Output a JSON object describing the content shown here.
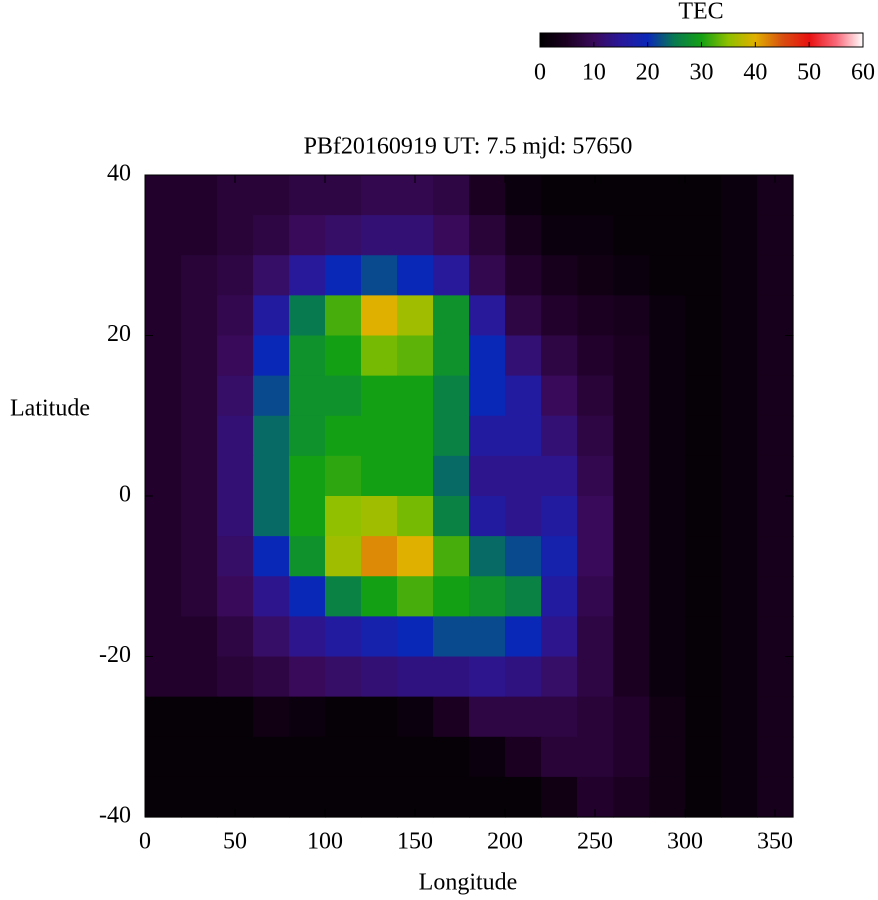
{
  "chart_data": {
    "type": "heatmap",
    "title": "PBf20160919  UT: 7.5  mjd: 57650",
    "x_label": "Longitude",
    "y_label": "Latitude",
    "xlim": [
      0,
      360
    ],
    "ylim": [
      -40,
      40
    ],
    "xticks": [
      0,
      50,
      100,
      150,
      200,
      250,
      300,
      350
    ],
    "yticks": [
      -40,
      -20,
      0,
      20,
      40
    ],
    "x": [
      10,
      30,
      50,
      70,
      90,
      110,
      130,
      150,
      170,
      190,
      210,
      230,
      250,
      270,
      290,
      310,
      330,
      350
    ],
    "y": [
      37.5,
      32.5,
      27.5,
      22.5,
      17.5,
      12.5,
      7.5,
      2.5,
      -2.5,
      -7.5,
      -12.5,
      -17.5,
      -22.5,
      -27.5,
      -32.5,
      -37.5
    ],
    "values": [
      [
        6,
        6,
        7,
        7,
        8,
        8,
        9,
        9,
        8,
        5,
        2,
        1,
        1,
        1,
        1,
        1,
        2,
        4
      ],
      [
        6,
        6,
        7,
        8,
        10,
        11,
        12,
        12,
        10,
        7,
        4,
        2,
        2,
        1,
        1,
        1,
        2,
        4
      ],
      [
        6,
        7,
        8,
        11,
        15,
        20,
        22,
        20,
        15,
        9,
        6,
        4,
        3,
        2,
        1,
        1,
        2,
        4
      ],
      [
        6,
        7,
        9,
        16,
        25,
        32,
        40,
        36,
        28,
        15,
        8,
        6,
        5,
        4,
        2,
        1,
        2,
        4
      ],
      [
        6,
        7,
        10,
        20,
        28,
        30,
        34,
        33,
        28,
        20,
        12,
        8,
        6,
        5,
        2,
        1,
        2,
        4
      ],
      [
        6,
        7,
        11,
        22,
        28,
        28,
        30,
        30,
        26,
        20,
        16,
        10,
        7,
        5,
        2,
        1,
        2,
        4
      ],
      [
        6,
        7,
        12,
        24,
        28,
        30,
        30,
        30,
        26,
        16,
        16,
        12,
        8,
        5,
        2,
        1,
        2,
        4
      ],
      [
        6,
        7,
        12,
        24,
        30,
        31,
        30,
        30,
        24,
        14,
        14,
        14,
        9,
        5,
        2,
        1,
        2,
        4
      ],
      [
        6,
        7,
        12,
        24,
        30,
        35,
        36,
        34,
        26,
        16,
        14,
        16,
        10,
        5,
        2,
        1,
        2,
        4
      ],
      [
        6,
        7,
        11,
        20,
        28,
        36,
        42,
        40,
        32,
        24,
        22,
        18,
        10,
        5,
        2,
        1,
        2,
        4
      ],
      [
        6,
        7,
        10,
        14,
        20,
        26,
        30,
        32,
        30,
        28,
        26,
        16,
        9,
        5,
        2,
        1,
        2,
        4
      ],
      [
        6,
        6,
        8,
        11,
        14,
        16,
        18,
        20,
        22,
        22,
        20,
        14,
        8,
        5,
        2,
        1,
        2,
        4
      ],
      [
        6,
        6,
        7,
        8,
        10,
        11,
        12,
        13,
        13,
        14,
        13,
        11,
        8,
        5,
        2,
        1,
        2,
        4
      ],
      [
        1,
        1,
        1,
        3,
        2,
        1,
        1,
        2,
        5,
        8,
        8,
        8,
        7,
        6,
        3,
        1,
        2,
        4
      ],
      [
        1,
        1,
        1,
        1,
        1,
        1,
        1,
        1,
        1,
        2,
        5,
        7,
        7,
        6,
        3,
        1,
        2,
        4
      ],
      [
        1,
        1,
        1,
        1,
        1,
        1,
        1,
        1,
        1,
        1,
        1,
        3,
        6,
        5,
        3,
        1,
        2,
        4
      ]
    ],
    "colorbar": {
      "label": "TEC",
      "lim": [
        0,
        60
      ],
      "ticks": [
        0,
        10,
        20,
        30,
        40,
        50,
        60
      ]
    },
    "colormap": [
      "#000000",
      "#1c0022",
      "#3a0a5a",
      "#28189a",
      "#0a28b8",
      "#087a50",
      "#14a014",
      "#90c000",
      "#e0b000",
      "#d85010",
      "#e81010",
      "#f86878",
      "#ffffff"
    ]
  }
}
